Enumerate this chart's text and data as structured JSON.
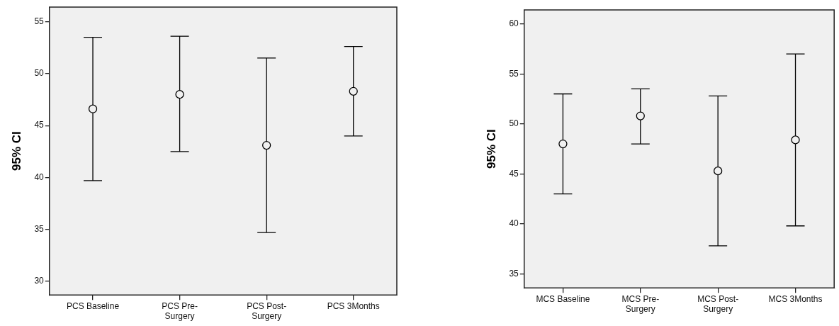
{
  "chart_data": [
    {
      "type": "scatter",
      "ylabel": "95% CI",
      "categories": [
        "PCS Baseline",
        "PCS Pre-\nSurgery",
        "PCS Post-\nSurgery",
        "PCS 3Months"
      ],
      "values": [
        46.6,
        48.0,
        43.1,
        48.3
      ],
      "errors": [
        [
          39.7,
          53.5
        ],
        [
          42.5,
          53.6
        ],
        [
          34.7,
          51.5
        ],
        [
          44.0,
          52.6
        ]
      ],
      "color": "#000000",
      "marker": "circle",
      "ylim": [
        28.7,
        56.4
      ],
      "yticks": [
        30,
        35,
        40,
        45,
        50,
        55
      ],
      "grid": false,
      "legend": false
    },
    {
      "type": "scatter",
      "ylabel": "95% CI",
      "categories": [
        "MCS Baseline",
        "MCS Pre-\nSurgery",
        "MCS Post-\nSurgery",
        "MCS 3Months"
      ],
      "values": [
        48.0,
        50.8,
        45.3,
        48.4
      ],
      "errors": [
        [
          43.0,
          53.0
        ],
        [
          48.0,
          53.5
        ],
        [
          37.8,
          52.8
        ],
        [
          39.8,
          57.0
        ]
      ],
      "color": "#000000",
      "marker": "circle",
      "ylim": [
        33.6,
        61.4
      ],
      "yticks": [
        35,
        40,
        45,
        50,
        55,
        60
      ],
      "grid": false,
      "legend": false
    }
  ]
}
